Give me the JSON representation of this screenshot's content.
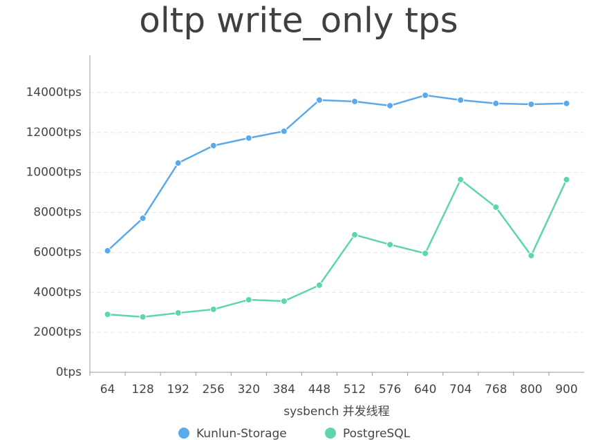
{
  "chart_data": {
    "type": "line",
    "title": "oltp write_only tps",
    "x_label": "sysbench 并发线程",
    "categories": [
      "64",
      "128",
      "192",
      "256",
      "320",
      "384",
      "448",
      "512",
      "576",
      "640",
      "704",
      "768",
      "800",
      "900"
    ],
    "series": [
      {
        "name": "Kunlun-Storage",
        "color": "#5aaaeb",
        "values": [
          6080,
          7710,
          10470,
          11340,
          11720,
          12060,
          13620,
          13550,
          13340,
          13860,
          13620,
          13450,
          13410,
          13450
        ]
      },
      {
        "name": "PostgreSQL",
        "color": "#5dd6a9",
        "values": [
          2900,
          2770,
          2970,
          3150,
          3630,
          3560,
          4360,
          6880,
          6390,
          5950,
          9640,
          8260,
          5840,
          9640
        ]
      }
    ],
    "ylim": [
      0,
      16000
    ],
    "yticks": [
      {
        "value": 0,
        "label": "0tps"
      },
      {
        "value": 2000,
        "label": "2000tps"
      },
      {
        "value": 4000,
        "label": "4000tps"
      },
      {
        "value": 6000,
        "label": "6000tps"
      },
      {
        "value": 8000,
        "label": "8000tps"
      },
      {
        "value": 10000,
        "label": "10000tps"
      },
      {
        "value": 12000,
        "label": "12000tps"
      },
      {
        "value": 14000,
        "label": "14000tps"
      }
    ],
    "grid": true,
    "legend": "bottom"
  }
}
